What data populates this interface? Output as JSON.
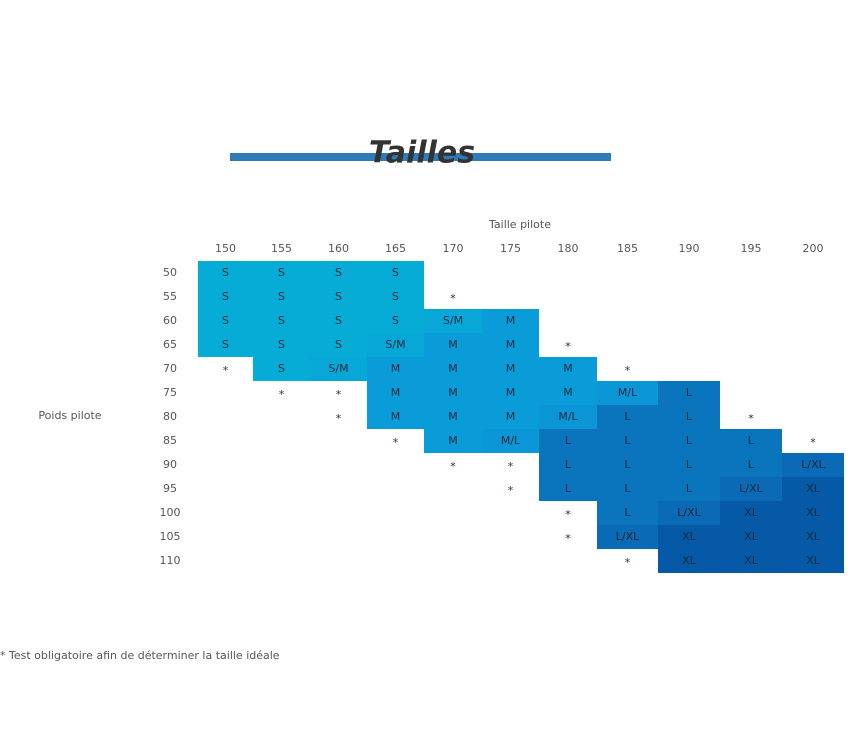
{
  "title": "Tailles",
  "column_header": "Taille pilote",
  "row_header": "Poids pilote",
  "columns": [
    "150",
    "155",
    "160",
    "165",
    "170",
    "175",
    "180",
    "185",
    "190",
    "195",
    "200"
  ],
  "rows": [
    {
      "label": "50",
      "cells": [
        "S",
        "S",
        "S",
        "S",
        null,
        null,
        null,
        null,
        null,
        null,
        null
      ]
    },
    {
      "label": "55",
      "cells": [
        "S",
        "S",
        "S",
        "S",
        "*",
        null,
        null,
        null,
        null,
        null,
        null
      ]
    },
    {
      "label": "60",
      "cells": [
        "S",
        "S",
        "S",
        "S",
        "S/M",
        "M",
        null,
        null,
        null,
        null,
        null
      ]
    },
    {
      "label": "65",
      "cells": [
        "S",
        "S",
        "S",
        "S/M",
        "M",
        "M",
        "*",
        null,
        null,
        null,
        null
      ]
    },
    {
      "label": "70",
      "cells": [
        "*",
        "S",
        "S/M",
        "M",
        "M",
        "M",
        "M",
        "*",
        null,
        null,
        null
      ]
    },
    {
      "label": "75",
      "cells": [
        null,
        "*",
        "*",
        "M",
        "M",
        "M",
        "M",
        "M/L",
        "L",
        null,
        null
      ]
    },
    {
      "label": "80",
      "cells": [
        null,
        null,
        "*",
        "M",
        "M",
        "M",
        "M/L",
        "L",
        "L",
        "*",
        null
      ]
    },
    {
      "label": "85",
      "cells": [
        null,
        null,
        null,
        "*",
        "M",
        "M/L",
        "L",
        "L",
        "L",
        "L",
        "*"
      ]
    },
    {
      "label": "90",
      "cells": [
        null,
        null,
        null,
        null,
        "*",
        "*",
        "L",
        "L",
        "L",
        "L",
        "L/XL"
      ]
    },
    {
      "label": "95",
      "cells": [
        null,
        null,
        null,
        null,
        null,
        "*",
        "L",
        "L",
        "L",
        "L/XL",
        "XL"
      ]
    },
    {
      "label": "100",
      "cells": [
        null,
        null,
        null,
        null,
        null,
        null,
        "*",
        "L",
        "L/XL",
        "XL",
        "XL"
      ]
    },
    {
      "label": "105",
      "cells": [
        null,
        null,
        null,
        null,
        null,
        null,
        "*",
        "L/XL",
        "XL",
        "XL",
        "XL"
      ]
    },
    {
      "label": "110",
      "cells": [
        null,
        null,
        null,
        null,
        null,
        null,
        null,
        "*",
        "XL",
        "XL",
        "XL"
      ]
    }
  ],
  "colors": {
    "S": "#07acd6",
    "S/M": "#07a8d8",
    "M": "#0a9bd9",
    "M/L": "#0b96d8",
    "L": "#0a75bc",
    "L/XL": "#0a6ab5",
    "XL": "#0559a6"
  },
  "footnote": "* Test obligatoire afin de déterminer la taille idéale"
}
